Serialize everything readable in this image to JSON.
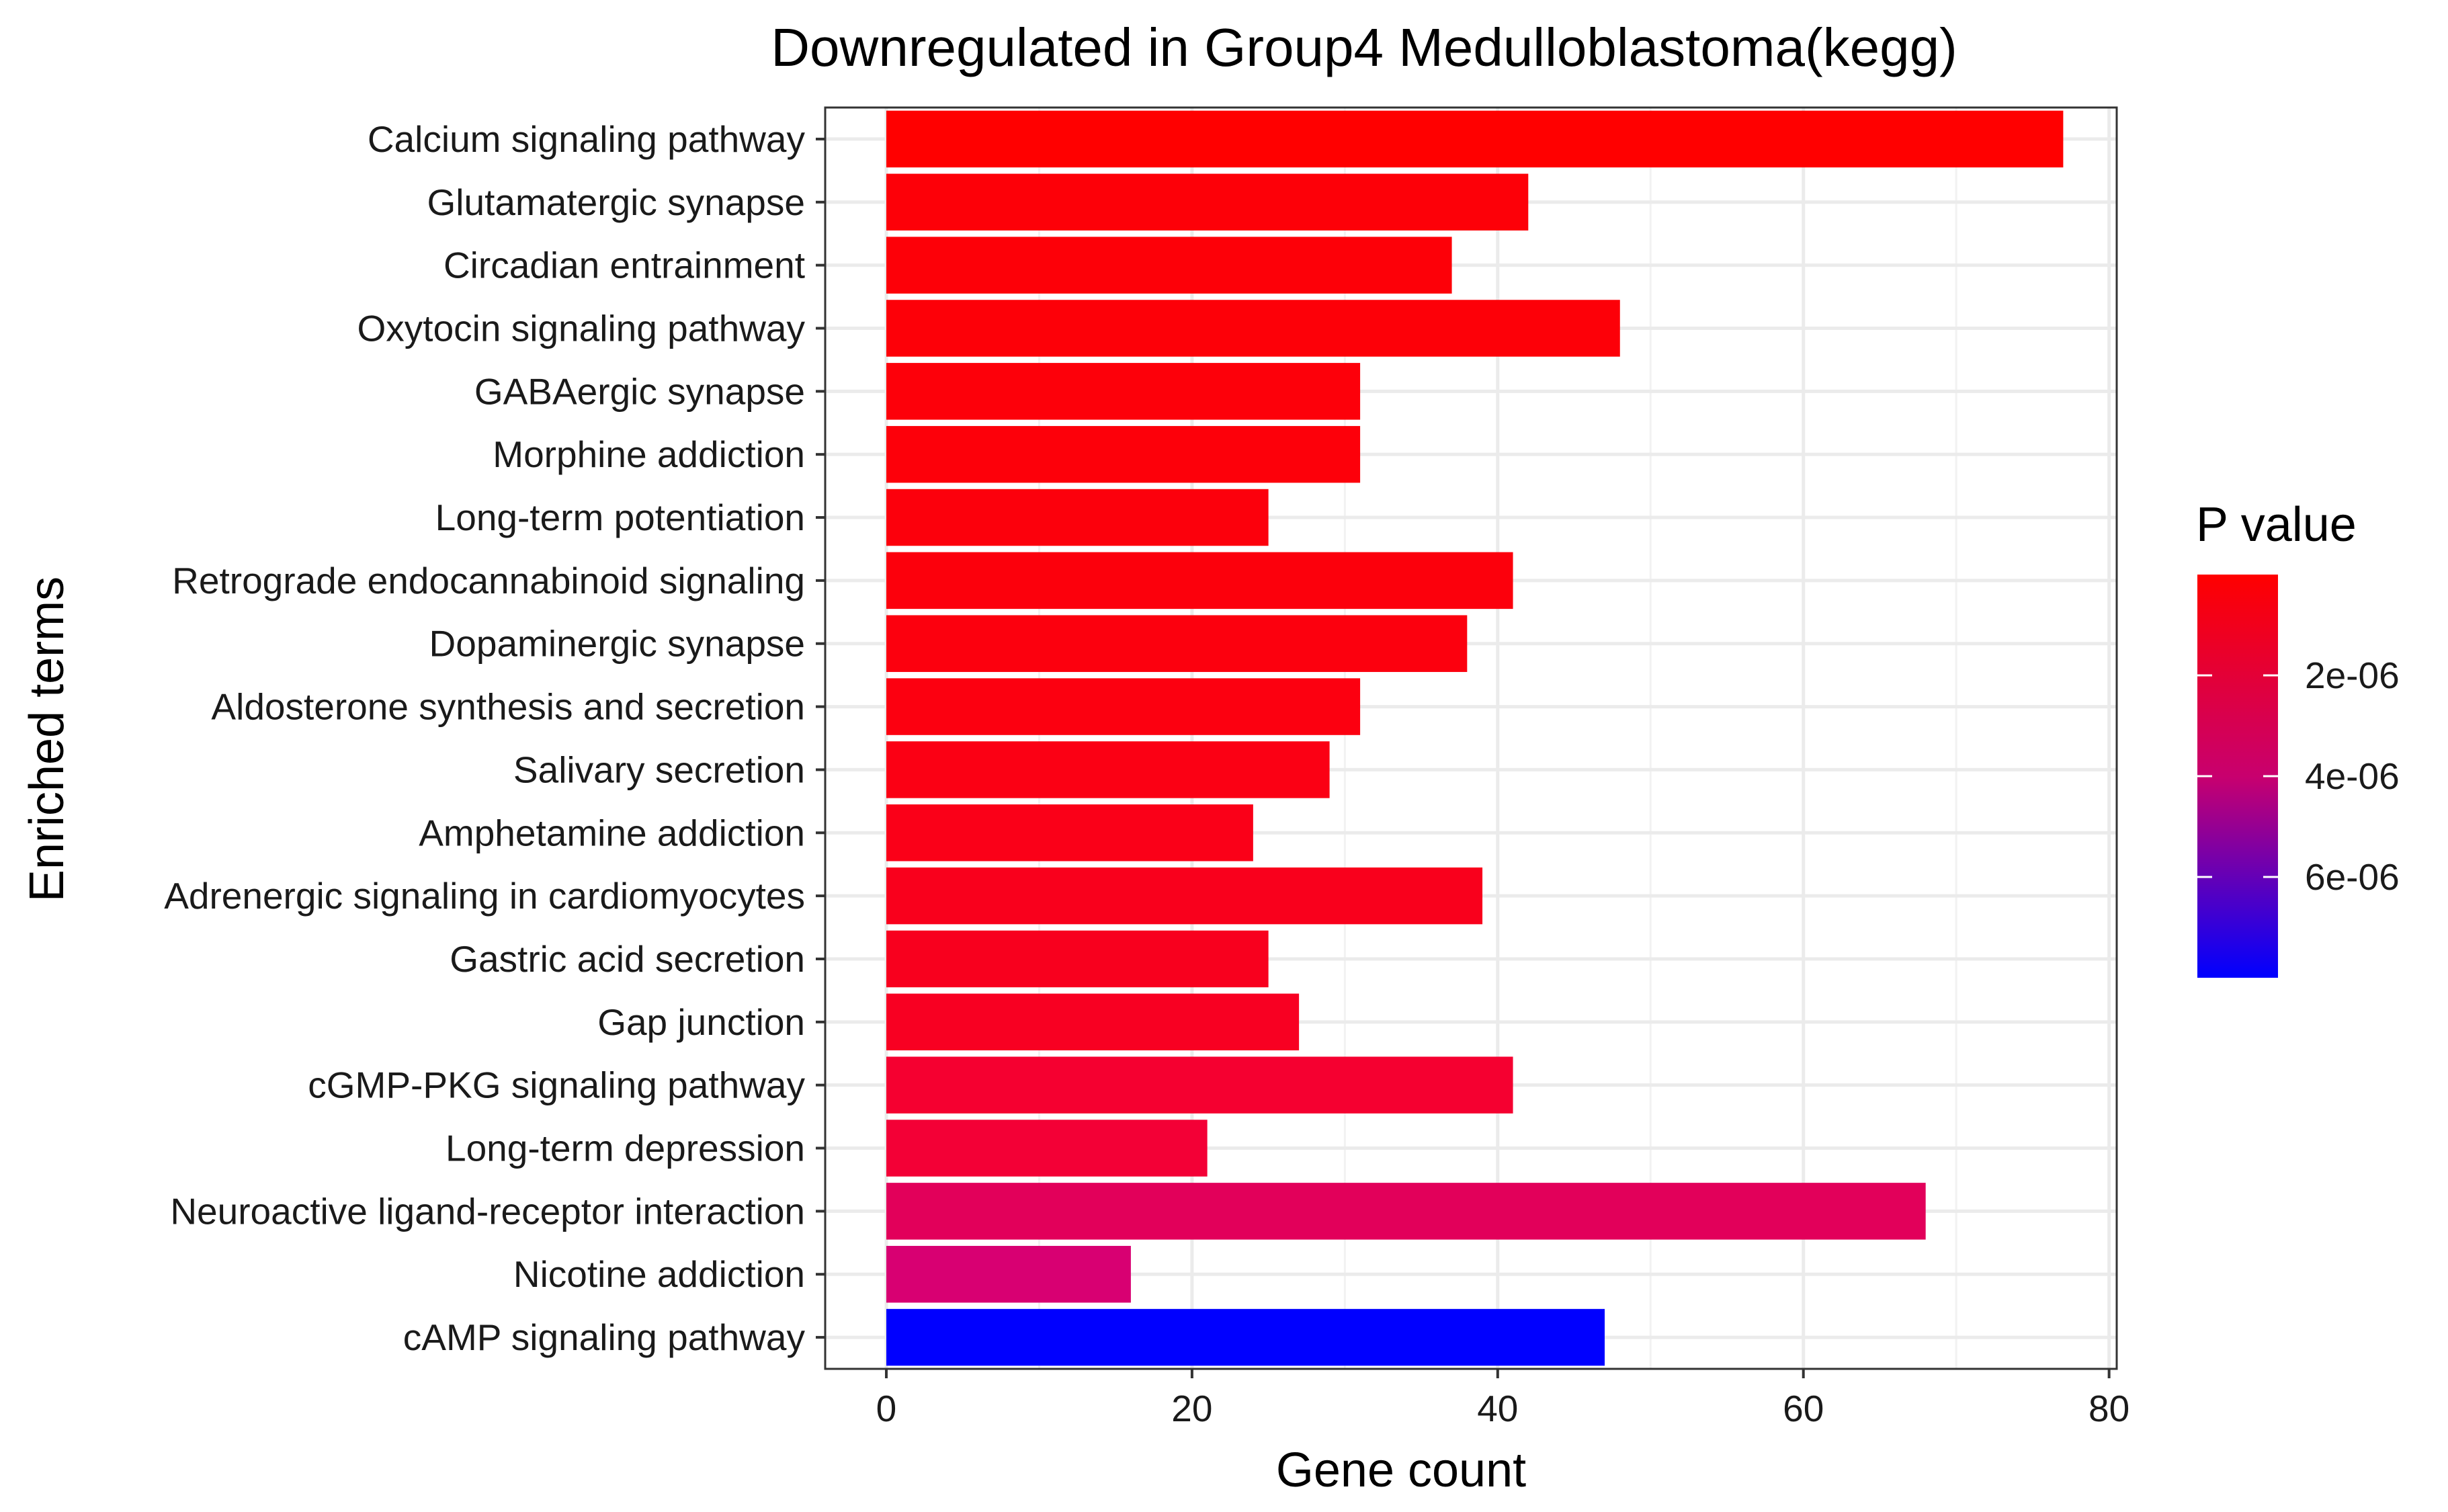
{
  "chart_data": {
    "type": "bar",
    "orientation": "horizontal",
    "title": "Downregulated in Group4 Medulloblastoma(kegg)",
    "xlabel": "Gene count",
    "ylabel": "Enriched terms",
    "xlim": [
      -4,
      80.5
    ],
    "xticks": [
      0,
      20,
      40,
      60,
      80
    ],
    "grid": true,
    "legend_position": "right",
    "categories": [
      "Calcium signaling pathway",
      "Glutamatergic synapse",
      "Circadian entrainment",
      "Oxytocin signaling pathway",
      "GABAergic synapse",
      "Morphine addiction",
      "Long-term potentiation",
      "Retrograde endocannabinoid signaling",
      "Dopaminergic synapse",
      "Aldosterone synthesis and secretion",
      "Salivary secretion",
      "Amphetamine addiction",
      "Adrenergic signaling in cardiomyocytes",
      "Gastric acid secretion",
      "Gap junction",
      "cGMP-PKG signaling pathway",
      "Long-term depression",
      "Neuroactive ligand-receptor interaction",
      "Nicotine addiction",
      "cAMP signaling pathway"
    ],
    "values": [
      77,
      42,
      37,
      48,
      31,
      31,
      25,
      41,
      38,
      31,
      29,
      24,
      39,
      25,
      27,
      41,
      21,
      68,
      16,
      47
    ],
    "colors": [
      "#FF0000",
      "#FD0008",
      "#FD0008",
      "#FD0008",
      "#FD000A",
      "#FD000A",
      "#FC000C",
      "#FC000C",
      "#FC000E",
      "#FC0010",
      "#FB0014",
      "#FA0018",
      "#F9001C",
      "#F8001E",
      "#F80022",
      "#F50030",
      "#F30036",
      "#E2005A",
      "#D80072",
      "#0000FF"
    ],
    "colorbar": {
      "title": "P value",
      "low_color": "#FF0000",
      "high_color": "#0000FF",
      "range": [
        0,
        8e-06
      ],
      "ticks": [
        {
          "value": 2e-06,
          "label": "2e-06"
        },
        {
          "value": 4e-06,
          "label": "4e-06"
        },
        {
          "value": 6e-06,
          "label": "6e-06"
        }
      ]
    }
  }
}
